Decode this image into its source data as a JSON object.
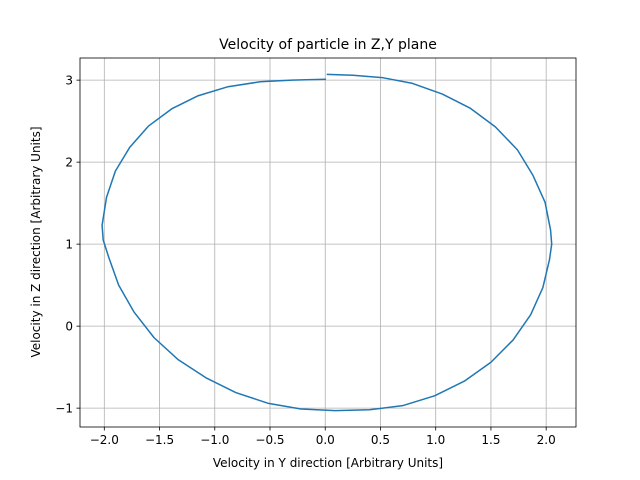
{
  "chart_data": {
    "type": "line",
    "title": "Velocity of particle in Z,Y plane",
    "xlabel": "Velocity in Y direction [Arbitrary Units]",
    "ylabel": "Velocity in Z direction [Arbitrary Units]",
    "xlim": [
      -2.22,
      2.27
    ],
    "ylim": [
      -1.23,
      3.27
    ],
    "xticks": [
      -2.0,
      -1.5,
      -1.0,
      -0.5,
      0.0,
      0.5,
      1.0,
      1.5,
      2.0
    ],
    "xtick_labels": [
      "−2.0",
      "−1.5",
      "−1.0",
      "−0.5",
      "0.0",
      "0.5",
      "1.0",
      "1.5",
      "2.0"
    ],
    "yticks": [
      -1,
      0,
      1,
      2,
      3
    ],
    "ytick_labels": [
      "−1",
      "0",
      "1",
      "2",
      "3"
    ],
    "grid": true,
    "series": [
      {
        "color": "#1f77b4",
        "x": [
          0.02,
          0.25,
          0.52,
          0.79,
          1.06,
          1.31,
          1.54,
          1.74,
          1.88,
          1.99,
          2.04,
          2.05,
          2.03,
          1.97,
          1.86,
          1.7,
          1.5,
          1.26,
          0.99,
          0.7,
          0.4,
          0.09,
          -0.22,
          -0.52,
          -0.81,
          -1.08,
          -1.33,
          -1.55,
          -1.73,
          -1.87,
          -1.96,
          -2.01,
          -2.02,
          -1.98,
          -1.9,
          -1.77,
          -1.6,
          -1.39,
          -1.15,
          -0.88,
          -0.59,
          -0.3,
          0.0
        ],
        "y": [
          3.07,
          3.06,
          3.03,
          2.96,
          2.83,
          2.66,
          2.43,
          2.15,
          1.84,
          1.51,
          1.17,
          1.0,
          0.81,
          0.47,
          0.14,
          -0.17,
          -0.44,
          -0.67,
          -0.85,
          -0.97,
          -1.02,
          -1.03,
          -1.01,
          -0.94,
          -0.81,
          -0.63,
          -0.41,
          -0.14,
          0.17,
          0.5,
          0.84,
          1.05,
          1.23,
          1.57,
          1.89,
          2.18,
          2.44,
          2.65,
          2.81,
          2.92,
          2.98,
          3.0,
          3.01
        ]
      }
    ]
  }
}
